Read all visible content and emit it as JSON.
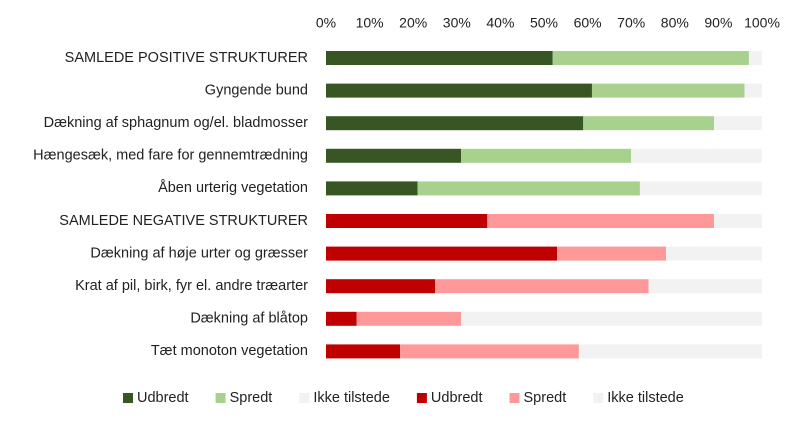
{
  "chart_data": {
    "type": "bar",
    "orientation": "horizontal",
    "stacked": "percent",
    "title": "",
    "xlabel": "",
    "ylabel": "",
    "xlim": [
      0,
      100
    ],
    "x_ticks": [
      "0%",
      "10%",
      "20%",
      "30%",
      "40%",
      "50%",
      "60%",
      "70%",
      "80%",
      "90%",
      "100%"
    ],
    "x_axis_position": "top",
    "grid": false,
    "legend_position": "bottom",
    "categories": [
      "SAMLEDE POSITIVE STRUKTURER",
      "Gyngende bund",
      "Dækning af sphagnum og/el. bladmosser",
      "Hængesæk, med fare for gennemtrædning",
      "Åben urterig vegetation",
      "SAMLEDE NEGATIVE STRUKTURER",
      "Dækning af høje urter og græsser",
      "Krat af pil, birk, fyr el. andre træarter",
      "Dækning af blåtop",
      "Tæt monoton vegetation"
    ],
    "series": [
      {
        "name": "Udbredt",
        "group": "positive",
        "color": "#375623",
        "values": [
          52,
          61,
          59,
          31,
          21,
          null,
          null,
          null,
          null,
          null
        ]
      },
      {
        "name": "Spredt",
        "group": "positive",
        "color": "#a9d18e",
        "values": [
          45,
          35,
          30,
          39,
          51,
          null,
          null,
          null,
          null,
          null
        ]
      },
      {
        "name": "Ikke tilstede",
        "group": "positive",
        "color": "#f2f2f2",
        "values": [
          3,
          4,
          11,
          30,
          28,
          null,
          null,
          null,
          null,
          null
        ]
      },
      {
        "name": "Udbredt",
        "group": "negative",
        "color": "#c00000",
        "values": [
          null,
          null,
          null,
          null,
          null,
          37,
          53,
          25,
          7,
          17
        ]
      },
      {
        "name": "Spredt",
        "group": "negative",
        "color": "#ff9999",
        "values": [
          null,
          null,
          null,
          null,
          null,
          52,
          25,
          49,
          24,
          41
        ]
      },
      {
        "name": "Ikke tilstede",
        "group": "negative",
        "color": "#f2f2f2",
        "values": [
          null,
          null,
          null,
          null,
          null,
          11,
          22,
          26,
          69,
          42
        ]
      }
    ]
  }
}
